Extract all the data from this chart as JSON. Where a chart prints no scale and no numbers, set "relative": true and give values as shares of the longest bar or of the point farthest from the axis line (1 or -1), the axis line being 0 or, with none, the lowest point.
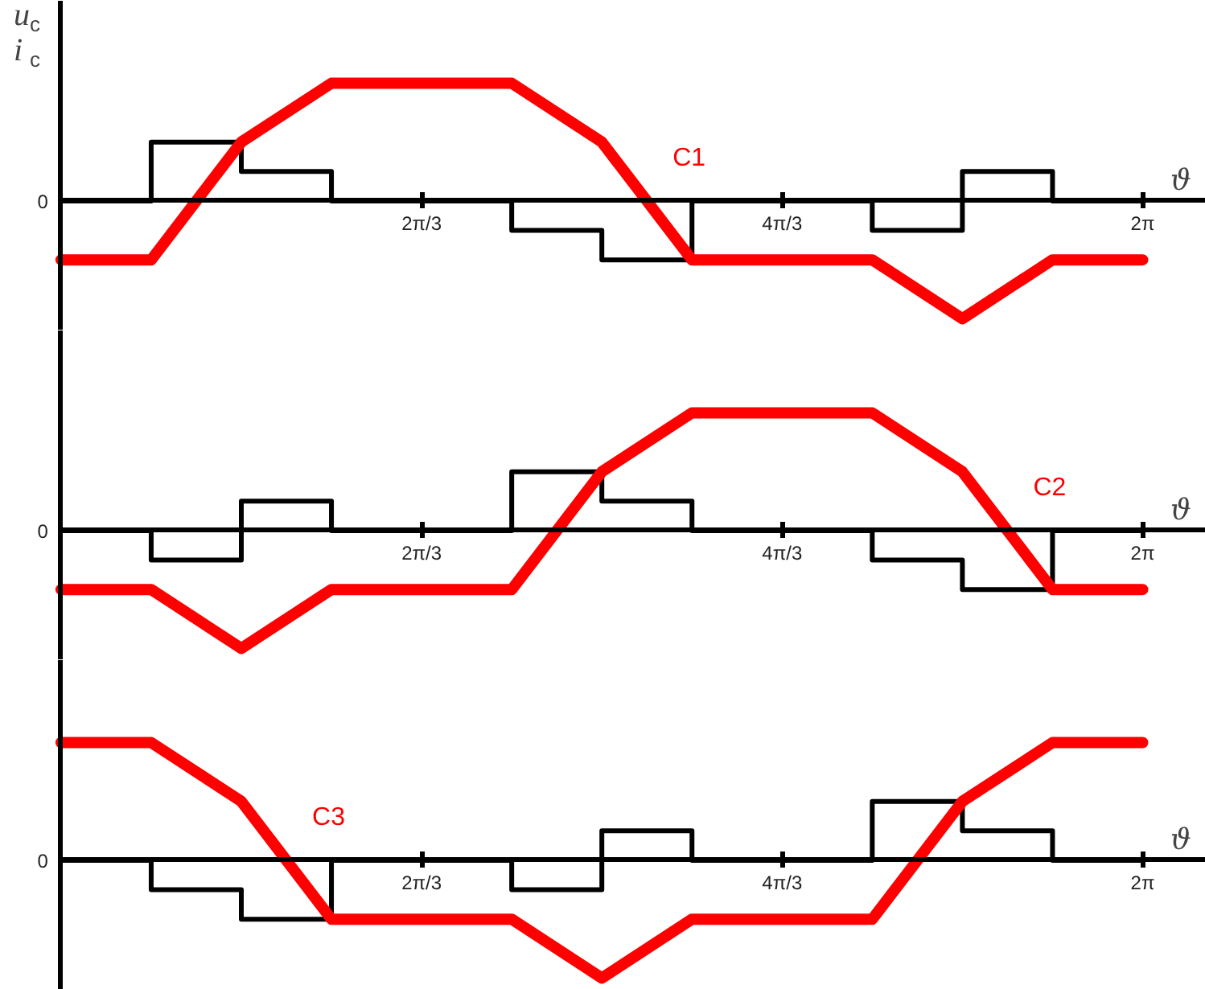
{
  "chart_data": [
    {
      "type": "line",
      "relative": true,
      "ylabel": "u$_{c}$\ni$_{c}$",
      "xlabel": "ϑ",
      "xlim": [
        -0.35,
        6.65
      ],
      "xticks": [
        {
          "value": 2.0944,
          "label": "2π/3"
        },
        {
          "value": 4.1888,
          "label": "4π/3"
        },
        {
          "value": 6.2832,
          "label": "2π"
        }
      ],
      "annotations": [
        "0"
      ],
      "series": [
        {
          "type": "step",
          "color": "#000000",
          "x": [
            0,
            0.5236,
            1.0472,
            1.5708,
            2.618,
            3.1416,
            3.6652,
            4.7124,
            5.236,
            5.7596,
            6.2832
          ],
          "values": [
            0,
            0.5,
            0.25,
            0,
            -0.25,
            -0.5,
            0,
            -0.25,
            0.25,
            0,
            0
          ]
        },
        {
          "name": "C1",
          "color": "#ff0000",
          "x": [
            0,
            0.5236,
            1.0472,
            1.5708,
            2.618,
            3.1416,
            3.6652,
            4.7124,
            5.236,
            5.7596,
            6.2832
          ],
          "values": [
            -0.5,
            -0.5,
            0.5,
            1,
            1,
            0.5,
            -0.5,
            -0.5,
            -1,
            -0.5,
            -0.5
          ]
        }
      ]
    },
    {
      "type": "line",
      "relative": true,
      "xlabel": "ϑ",
      "xlim": [
        -0.35,
        6.65
      ],
      "xticks": [
        {
          "value": 2.0944,
          "label": "2π/3"
        },
        {
          "value": 4.1888,
          "label": "4π/3"
        },
        {
          "value": 6.2832,
          "label": "2π"
        }
      ],
      "annotations": [
        "0"
      ],
      "series": [
        {
          "type": "step",
          "color": "#000000",
          "x": [
            0,
            0.5236,
            1.0472,
            1.5708,
            2.618,
            3.1416,
            3.6652,
            4.7124,
            5.236,
            5.7596,
            6.2832
          ],
          "values": [
            0,
            -0.25,
            0.25,
            0,
            0.5,
            0.25,
            0,
            -0.25,
            -0.5,
            0,
            0
          ]
        },
        {
          "name": "C2",
          "color": "#ff0000",
          "x": [
            0,
            0.5236,
            1.0472,
            1.5708,
            2.618,
            3.1416,
            3.6652,
            4.7124,
            5.236,
            5.7596,
            6.2832
          ],
          "values": [
            -0.5,
            -0.5,
            -1,
            -0.5,
            -0.5,
            0.5,
            1,
            1,
            0.5,
            -0.5,
            -0.5
          ]
        }
      ]
    },
    {
      "type": "line",
      "relative": true,
      "xlabel": "ϑ",
      "xlim": [
        -0.35,
        6.65
      ],
      "xticks": [
        {
          "value": 2.0944,
          "label": "2π/3"
        },
        {
          "value": 4.1888,
          "label": "4π/3"
        },
        {
          "value": 6.2832,
          "label": "2π"
        }
      ],
      "annotations": [
        "0"
      ],
      "series": [
        {
          "type": "step",
          "color": "#000000",
          "x": [
            0,
            0.5236,
            1.0472,
            1.5708,
            2.618,
            3.1416,
            3.6652,
            4.7124,
            5.236,
            5.7596,
            6.2832
          ],
          "values": [
            0,
            -0.25,
            -0.5,
            0,
            -0.25,
            0.25,
            0,
            0.5,
            0.25,
            0,
            0
          ]
        },
        {
          "name": "C3",
          "color": "#ff0000",
          "x": [
            0,
            0.5236,
            1.0472,
            1.5708,
            2.618,
            3.1416,
            3.6652,
            4.7124,
            5.236,
            5.7596,
            6.2832
          ],
          "values": [
            1,
            1,
            0.5,
            -0.5,
            -0.5,
            -1,
            -0.5,
            -0.5,
            0.5,
            1,
            1
          ]
        }
      ]
    }
  ]
}
